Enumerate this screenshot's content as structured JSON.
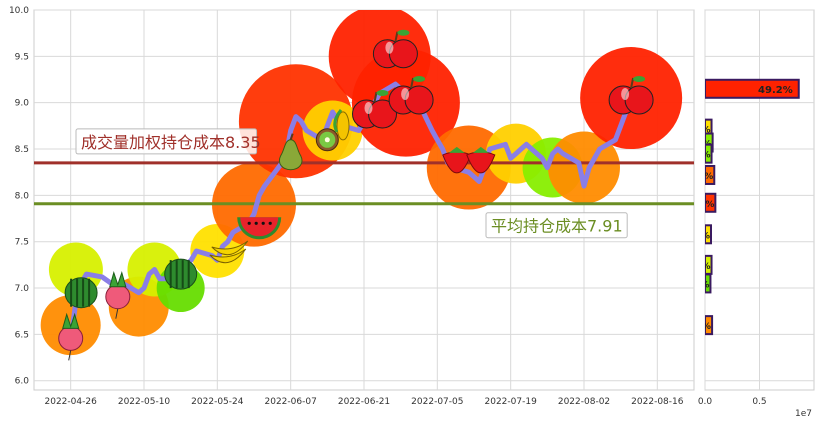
{
  "chart_data": {
    "type": "line",
    "x_dates": [
      "2022-04-26",
      "2022-04-27",
      "2022-04-28",
      "2022-04-29",
      "2022-05-02",
      "2022-05-05",
      "2022-05-06",
      "2022-05-09",
      "2022-05-10",
      "2022-05-11",
      "2022-05-12",
      "2022-05-13",
      "2022-05-16",
      "2022-05-17",
      "2022-05-18",
      "2022-05-19",
      "2022-05-20",
      "2022-05-23",
      "2022-05-24",
      "2022-05-25",
      "2022-05-26",
      "2022-05-27",
      "2022-05-30",
      "2022-05-31",
      "2022-06-01",
      "2022-06-02",
      "2022-06-06",
      "2022-06-07",
      "2022-06-08",
      "2022-06-09",
      "2022-06-10",
      "2022-06-13",
      "2022-06-14",
      "2022-06-15",
      "2022-06-16",
      "2022-06-17",
      "2022-06-20",
      "2022-06-21",
      "2022-06-22",
      "2022-06-23",
      "2022-06-24",
      "2022-06-27",
      "2022-06-28",
      "2022-06-29",
      "2022-06-30",
      "2022-07-01",
      "2022-07-04",
      "2022-07-05",
      "2022-07-06",
      "2022-07-07",
      "2022-07-08",
      "2022-07-11",
      "2022-07-12",
      "2022-07-13",
      "2022-07-14",
      "2022-07-15",
      "2022-07-18",
      "2022-07-19",
      "2022-07-20",
      "2022-07-21",
      "2022-07-22",
      "2022-07-25",
      "2022-07-26",
      "2022-07-27",
      "2022-07-28",
      "2022-07-29",
      "2022-08-01",
      "2022-08-02",
      "2022-08-03",
      "2022-08-04",
      "2022-08-05",
      "2022-08-08",
      "2022-08-09",
      "2022-08-10",
      "2022-08-11"
    ],
    "price": [
      6.45,
      6.85,
      7.05,
      7.15,
      7.12,
      7.0,
      7.05,
      6.95,
      7.0,
      7.15,
      7.2,
      7.1,
      7.1,
      7.2,
      7.25,
      7.3,
      7.4,
      7.35,
      7.3,
      7.45,
      7.5,
      7.6,
      7.7,
      7.8,
      8.0,
      8.1,
      8.4,
      8.7,
      8.85,
      8.8,
      8.7,
      8.6,
      8.75,
      8.9,
      8.8,
      8.75,
      8.7,
      8.8,
      8.95,
      9.0,
      9.1,
      9.2,
      9.15,
      9.0,
      8.95,
      9.05,
      8.7,
      8.6,
      8.5,
      8.35,
      8.3,
      8.25,
      8.2,
      8.15,
      8.3,
      8.5,
      8.55,
      8.4,
      8.45,
      8.5,
      8.55,
      8.4,
      8.3,
      8.45,
      8.5,
      8.45,
      8.35,
      8.1,
      8.3,
      8.4,
      8.5,
      8.6,
      8.75,
      8.9,
      9.05
    ],
    "x_ticks": [
      "2022-04-26",
      "2022-05-10",
      "2022-05-24",
      "2022-06-07",
      "2022-06-21",
      "2022-07-05",
      "2022-07-19",
      "2022-08-02",
      "2022-08-16"
    ],
    "ylim": [
      5.9,
      10.0
    ],
    "y_ticks": [
      "6.0",
      "6.5",
      "7.0",
      "7.5",
      "8.0",
      "8.5",
      "9.0",
      "9.5",
      "10.0"
    ],
    "hlines": [
      {
        "label": "成交量加权持仓成本8.35",
        "value": 8.35,
        "color": "#a0302a"
      },
      {
        "label": "平均持仓成本7.91",
        "value": 7.91,
        "color": "#6b8e23"
      }
    ],
    "bubbles": [
      {
        "date": "2022-04-26",
        "value": 6.6,
        "size": 0.3,
        "color": "#ff8c00"
      },
      {
        "date": "2022-04-27",
        "value": 7.2,
        "size": 0.25,
        "color": "#d7f000"
      },
      {
        "date": "2022-05-09",
        "value": 6.8,
        "size": 0.3,
        "color": "#ff8c00"
      },
      {
        "date": "2022-05-12",
        "value": 7.2,
        "size": 0.25,
        "color": "#d7f000"
      },
      {
        "date": "2022-05-17",
        "value": 7.0,
        "size": 0.2,
        "color": "#66dd00"
      },
      {
        "date": "2022-05-24",
        "value": 7.4,
        "size": 0.25,
        "color": "#ffe000"
      },
      {
        "date": "2022-05-31",
        "value": 7.9,
        "size": 0.5,
        "color": "#ff6a00"
      },
      {
        "date": "2022-06-08",
        "value": 8.8,
        "size": 0.75,
        "color": "#ff3300"
      },
      {
        "date": "2022-06-15",
        "value": 8.7,
        "size": 0.3,
        "color": "#ffd000"
      },
      {
        "date": "2022-06-24",
        "value": 9.5,
        "size": 0.65,
        "color": "#ff2200"
      },
      {
        "date": "2022-06-29",
        "value": 9.0,
        "size": 0.7,
        "color": "#ff2200"
      },
      {
        "date": "2022-07-11",
        "value": 8.3,
        "size": 0.5,
        "color": "#ff6a00"
      },
      {
        "date": "2022-07-20",
        "value": 8.45,
        "size": 0.3,
        "color": "#ffd000"
      },
      {
        "date": "2022-07-27",
        "value": 8.3,
        "size": 0.3,
        "color": "#88ee00"
      },
      {
        "date": "2022-08-02",
        "value": 8.3,
        "size": 0.4,
        "color": "#ff8c00"
      },
      {
        "date": "2022-08-11",
        "value": 9.05,
        "size": 0.65,
        "color": "#ff2200"
      }
    ],
    "fruit_icons": [
      {
        "date": "2022-04-26",
        "value": 6.5,
        "kind": "radish"
      },
      {
        "date": "2022-04-28",
        "value": 6.95,
        "kind": "watermelon"
      },
      {
        "date": "2022-05-05",
        "value": 6.95,
        "kind": "radish"
      },
      {
        "date": "2022-05-17",
        "value": 7.15,
        "kind": "watermelon"
      },
      {
        "date": "2022-05-26",
        "value": 7.4,
        "kind": "banana"
      },
      {
        "date": "2022-06-01",
        "value": 7.85,
        "kind": "watermelon-slice"
      },
      {
        "date": "2022-06-07",
        "value": 8.45,
        "kind": "pear"
      },
      {
        "date": "2022-06-14",
        "value": 8.6,
        "kind": "kiwi"
      },
      {
        "date": "2022-06-17",
        "value": 8.75,
        "kind": "corn"
      },
      {
        "date": "2022-06-23",
        "value": 8.9,
        "kind": "apple"
      },
      {
        "date": "2022-06-27",
        "value": 9.55,
        "kind": "apple"
      },
      {
        "date": "2022-06-30",
        "value": 9.05,
        "kind": "apple"
      },
      {
        "date": "2022-07-11",
        "value": 8.35,
        "kind": "strawberry"
      },
      {
        "date": "2022-08-11",
        "value": 9.05,
        "kind": "apple"
      }
    ],
    "side_bars": {
      "exponent_label": "1e7",
      "x_ticks": [
        "0.0",
        "0.5"
      ],
      "xlim": [
        0,
        10000000.0
      ],
      "bars": [
        {
          "price": 9.15,
          "volume": 8600000.0,
          "label": "49.2%",
          "color": "#ff2200"
        },
        {
          "price": 8.72,
          "volume": 600000.0,
          "label": "%",
          "color": "#ffe000"
        },
        {
          "price": 8.57,
          "volume": 700000.0,
          "label": "%",
          "color": "#88ee00"
        },
        {
          "price": 8.45,
          "volume": 600000.0,
          "label": "%",
          "color": "#88ee00"
        },
        {
          "price": 8.22,
          "volume": 850000.0,
          "label": "%",
          "color": "#ff6a00"
        },
        {
          "price": 7.92,
          "volume": 950000.0,
          "label": "%",
          "color": "#ff3300"
        },
        {
          "price": 7.58,
          "volume": 550000.0,
          "label": "%",
          "color": "#ffe000"
        },
        {
          "price": 7.25,
          "volume": 600000.0,
          "label": "%",
          "color": "#d7f000"
        },
        {
          "price": 7.05,
          "volume": 500000.0,
          "label": "%",
          "color": "#66dd00"
        },
        {
          "price": 6.6,
          "volume": 650000.0,
          "label": "%",
          "color": "#ff8c00"
        }
      ]
    }
  }
}
